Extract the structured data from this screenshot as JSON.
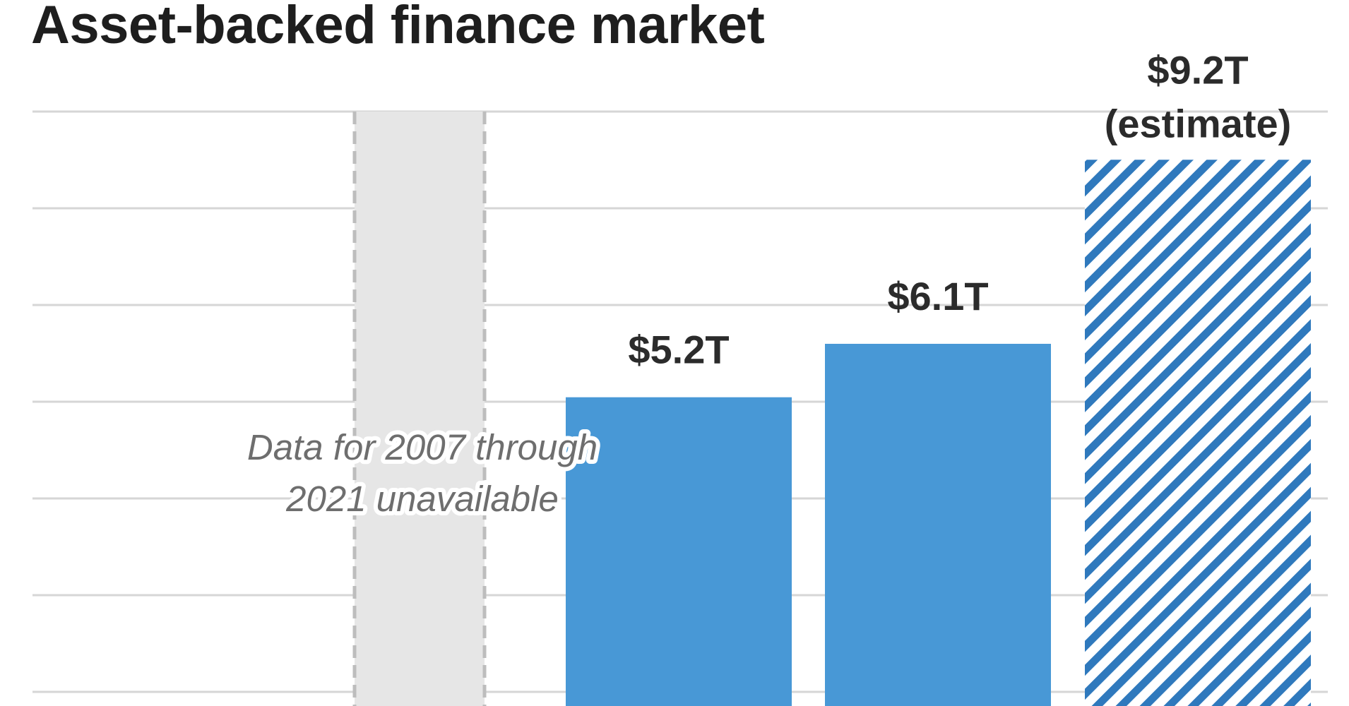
{
  "chart_data": {
    "type": "bar",
    "title": "Asset-backed finance market",
    "categories": [
      "",
      "",
      ""
    ],
    "values": [
      5.2,
      6.1,
      9.2
    ],
    "estimate": [
      false,
      false,
      true
    ],
    "data_labels": [
      "$5.2T",
      "$6.1T",
      "$9.2T"
    ],
    "estimate_label": "(estimate)",
    "gap_annotation": [
      "Data for 2007 through",
      "2021 unavailable"
    ],
    "grid": true,
    "colors": {
      "bar": "#4898d6",
      "hatch": "#2f79bd",
      "gap_shade": "#e6e6e6",
      "gap_border": "#bdbdbd",
      "gridline": "#d6d6d6"
    }
  }
}
